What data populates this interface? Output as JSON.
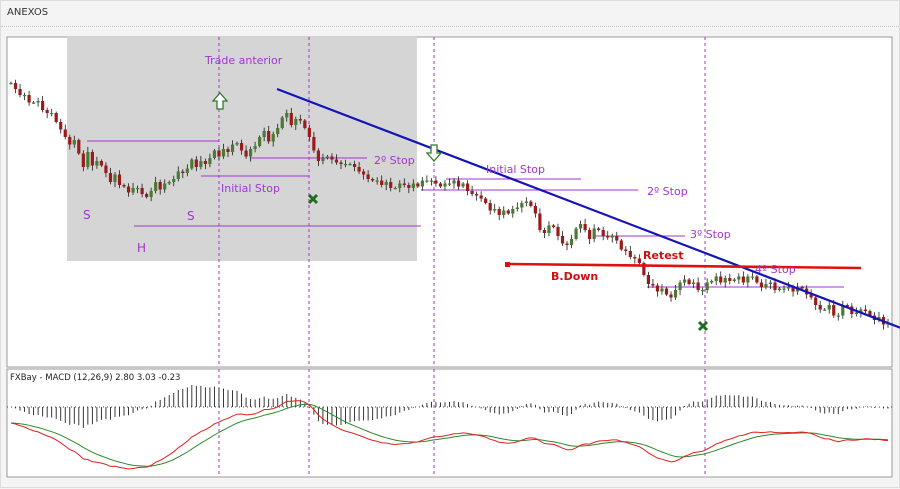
{
  "window": {
    "title": "ANEXOS"
  },
  "colors": {
    "bull": "#4a7a33",
    "bear": "#9b1b1b",
    "wick": "#1a1a1a",
    "purple": "#a235d0",
    "trend": "#1414b4",
    "red": "#e01010",
    "green": "#1f6f1f",
    "shade": "#d3d3d3",
    "macd_red": "#e02020",
    "macd_green": "#2a8a2a"
  },
  "chart_data": {
    "type": "candlestick",
    "price_series": [
      0.92,
      0.88,
      0.84,
      0.84,
      0.79,
      0.79,
      0.8,
      0.74,
      0.72,
      0.72,
      0.66,
      0.61,
      0.56,
      0.51,
      0.54,
      0.45,
      0.36,
      0.46,
      0.37,
      0.4,
      0.37,
      0.32,
      0.26,
      0.31,
      0.24,
      0.23,
      0.19,
      0.22,
      0.22,
      0.18,
      0.16,
      0.2,
      0.26,
      0.21,
      0.25,
      0.26,
      0.28,
      0.33,
      0.32,
      0.35,
      0.41,
      0.36,
      0.4,
      0.38,
      0.42,
      0.47,
      0.43,
      0.48,
      0.46,
      0.51,
      0.52,
      0.47,
      0.43,
      0.48,
      0.5,
      0.56,
      0.6,
      0.53,
      0.58,
      0.62,
      0.69,
      0.72,
      0.64,
      0.68,
      0.67,
      0.62,
      0.56,
      0.47,
      0.4,
      0.42,
      0.43,
      0.41,
      0.39,
      0.38,
      0.38,
      0.38,
      0.36,
      0.33,
      0.31,
      0.28,
      0.27,
      0.27,
      0.24,
      0.26,
      0.22,
      0.22,
      0.25,
      0.24,
      0.22,
      0.25,
      0.23,
      0.27,
      0.27,
      0.27,
      0.25,
      0.23,
      0.25,
      0.25,
      0.27,
      0.23,
      0.25,
      0.2,
      0.18,
      0.17,
      0.15,
      0.12,
      0.07,
      0.08,
      0.04,
      0.07,
      0.05,
      0.08,
      0.09,
      0.12,
      0.13,
      0.1,
      0.05,
      -0.06,
      -0.08,
      -0.03,
      -0.04,
      -0.1,
      -0.15,
      -0.16,
      -0.12,
      -0.05,
      -0.02,
      -0.06,
      -0.12,
      -0.05,
      -0.06,
      -0.1,
      -0.11,
      -0.1,
      -0.13,
      -0.19,
      -0.2,
      -0.24,
      -0.25,
      -0.28,
      -0.36,
      -0.42,
      -0.43,
      -0.47,
      -0.45,
      -0.49,
      -0.51,
      -0.46,
      -0.41,
      -0.39,
      -0.42,
      -0.41,
      -0.46,
      -0.46,
      -0.41,
      -0.4,
      -0.37,
      -0.41,
      -0.38,
      -0.4,
      -0.39,
      -0.37,
      -0.41,
      -0.37,
      -0.37,
      -0.41,
      -0.44,
      -0.42,
      -0.41,
      -0.46,
      -0.45,
      -0.45,
      -0.44,
      -0.47,
      -0.44,
      -0.45,
      -0.49,
      -0.51,
      -0.56,
      -0.59,
      -0.59,
      -0.56,
      -0.63,
      -0.63,
      -0.56,
      -0.57,
      -0.62,
      -0.61,
      -0.59,
      -0.6,
      -0.63,
      -0.66,
      -0.64,
      -0.69,
      -0.68
    ],
    "macd_label": "FXBay - MACD (12,26,9) 2.80 3.03 -0.23",
    "annotations": {
      "trade_anterior": "Trade anterior",
      "stop_2_first": "2º Stop",
      "initial_stop_left": "Initial Stop",
      "initial_stop_mid": "Initial Stop",
      "stop_2_second": "2º Stop",
      "stop_3": "3º Stop",
      "stop_4": "4º Stop",
      "retest": "Retest",
      "breakdown": "B.Down",
      "shoulder_left": "S",
      "shoulder_right": "S",
      "head": "H"
    }
  }
}
